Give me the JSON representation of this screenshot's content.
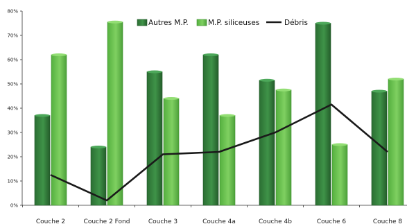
{
  "chart_data": {
    "type": "bar",
    "categories": [
      "Couche 2",
      "Couche 2 Fond",
      "Couche 3",
      "Couche 4a",
      "Couche 4b",
      "Couche 6",
      "Couche 8"
    ],
    "series": [
      {
        "name": "Autres M.P.",
        "type": "bar",
        "color": "#2f7d3a",
        "values": [
          37,
          24,
          55,
          62,
          51.5,
          75,
          47
        ]
      },
      {
        "name": "M.P. siliceuses",
        "type": "bar",
        "color": "#66c14d",
        "values": [
          62,
          75.5,
          44,
          37,
          47.5,
          25,
          52
        ]
      },
      {
        "name": "Débris",
        "type": "line",
        "color": "#1a1a1a",
        "values": [
          12.5,
          2,
          21,
          22,
          30,
          41.5,
          22
        ]
      }
    ],
    "y_ticks": [
      "0%",
      "10%",
      "20%",
      "30%",
      "40%",
      "50%",
      "60%",
      "70%",
      "80%"
    ],
    "ylim": [
      0,
      80
    ],
    "grid": false,
    "legend_position": "top-center",
    "title": "",
    "xlabel": "",
    "ylabel": ""
  }
}
